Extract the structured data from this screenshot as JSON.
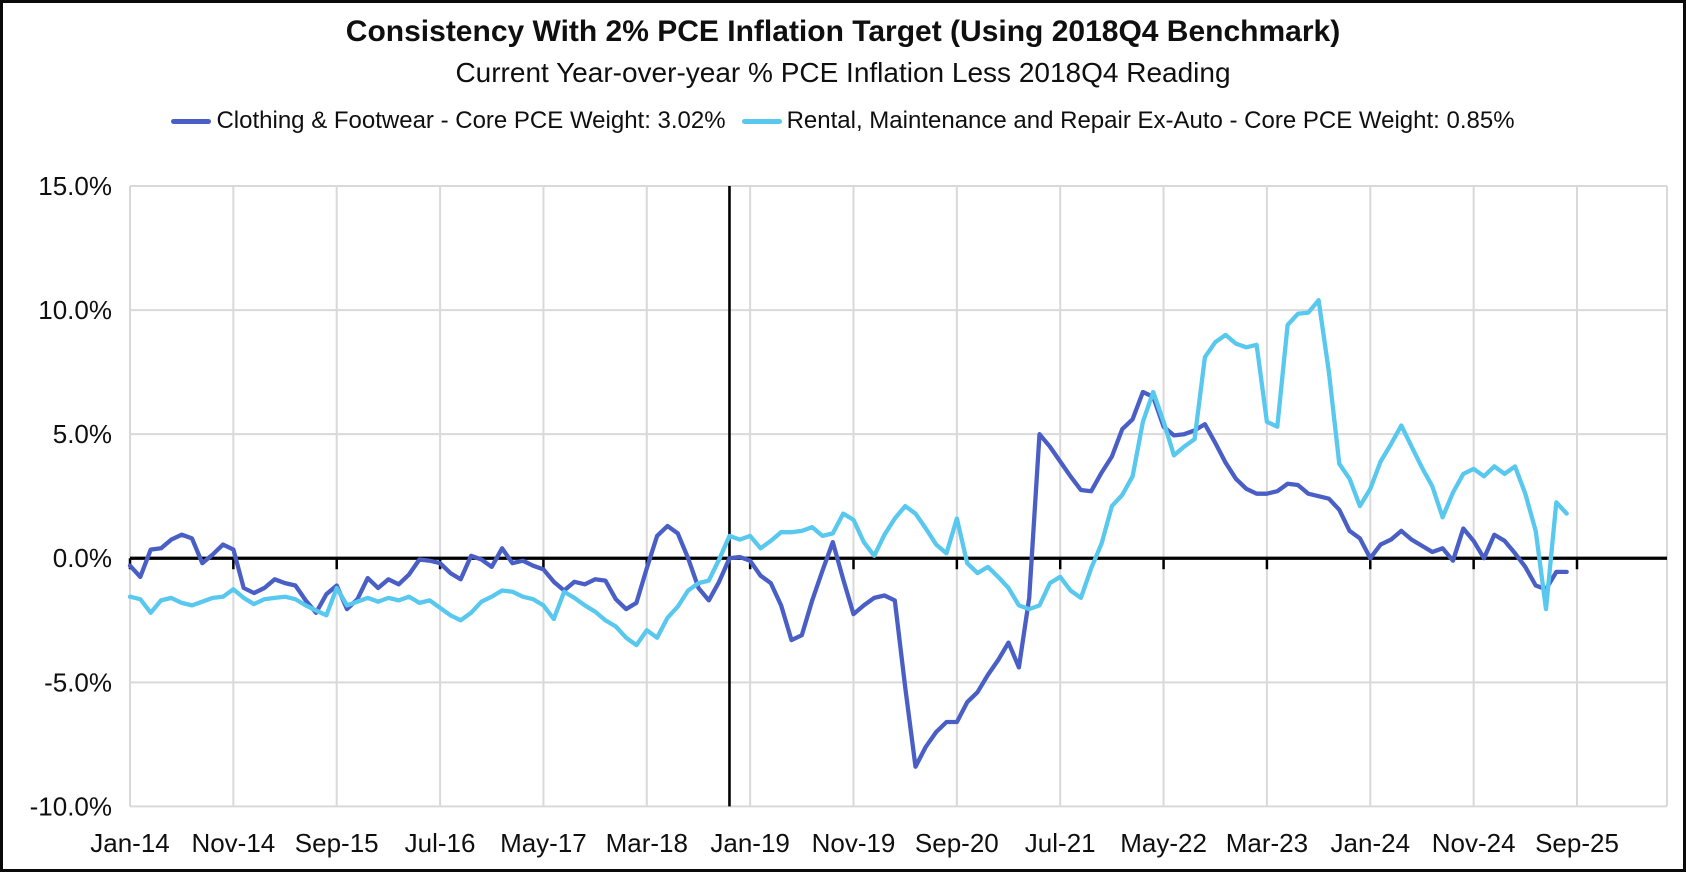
{
  "title": "Consistency With 2% PCE Inflation Target (Using 2018Q4 Benchmark)",
  "subtitle": "Current Year-over-year % PCE Inflation Less 2018Q4 Reading",
  "legend": [
    {
      "label": "Clothing & Footwear - Core PCE Weight: 3.02%",
      "color": "#4A5FC6"
    },
    {
      "label": "Rental, Maintenance and Repair Ex-Auto - Core PCE Weight: 0.85%",
      "color": "#58C8EE"
    }
  ],
  "colors": {
    "gridline": "#D9D9D9",
    "axis_line": "#000000",
    "benchmark_line": "#000000",
    "text": "#0f0f0f",
    "background": "#ffffff"
  },
  "chart_data": {
    "type": "line",
    "frequency": "monthly",
    "x_start": "Jan-14",
    "x_end": "Aug-25",
    "n_points": 140,
    "x_tick_labels": [
      "Jan-14",
      "Nov-14",
      "Sep-15",
      "Jul-16",
      "May-17",
      "Mar-18",
      "Jan-19",
      "Nov-19",
      "Sep-20",
      "Jul-21",
      "May-22",
      "Mar-23",
      "Jan-24",
      "Nov-24",
      "Sep-25"
    ],
    "x_tick_interval_months": 10,
    "y_ticks": [
      15,
      10,
      5,
      0,
      -5,
      -10
    ],
    "y_tick_labels": [
      "15.0%",
      "10.0%",
      "5.0%",
      "0.0%",
      "-5.0%",
      "-10.0%"
    ],
    "ylim": [
      -10,
      15
    ],
    "grid": true,
    "legend_position": "top",
    "vline_month_index": 58,
    "series": [
      {
        "id": "clothing",
        "name": "Clothing & Footwear - Core PCE Weight: 3.02%",
        "color": "#4A5FC6",
        "values": [
          -0.3,
          -0.75,
          0.35,
          0.4,
          0.75,
          0.95,
          0.8,
          -0.2,
          0.15,
          0.55,
          0.35,
          -1.2,
          -1.4,
          -1.2,
          -0.85,
          -1.0,
          -1.1,
          -1.7,
          -2.2,
          -1.45,
          -1.1,
          -2.05,
          -1.65,
          -0.8,
          -1.2,
          -0.85,
          -1.05,
          -0.65,
          -0.05,
          -0.1,
          -0.2,
          -0.6,
          -0.85,
          0.1,
          -0.05,
          -0.35,
          0.4,
          -0.2,
          -0.1,
          -0.3,
          -0.45,
          -0.95,
          -1.3,
          -0.95,
          -1.05,
          -0.85,
          -0.9,
          -1.65,
          -2.05,
          -1.8,
          -0.4,
          0.9,
          1.3,
          1.0,
          0.0,
          -1.2,
          -1.7,
          -0.95,
          0.0,
          0.05,
          -0.1,
          -0.7,
          -1.0,
          -1.9,
          -3.3,
          -3.1,
          -1.7,
          -0.5,
          0.65,
          -0.85,
          -2.25,
          -1.9,
          -1.6,
          -1.5,
          -1.7,
          -5.2,
          -8.4,
          -7.6,
          -7.0,
          -6.6,
          -6.6,
          -5.8,
          -5.4,
          -4.7,
          -4.1,
          -3.4,
          -4.4,
          -1.6,
          5.0,
          4.5,
          3.9,
          3.3,
          2.75,
          2.7,
          3.45,
          4.1,
          5.2,
          5.6,
          6.7,
          6.5,
          5.3,
          4.95,
          5.0,
          5.15,
          5.4,
          4.65,
          3.85,
          3.2,
          2.8,
          2.6,
          2.6,
          2.7,
          3.0,
          2.95,
          2.6,
          2.5,
          2.4,
          1.95,
          1.1,
          0.8,
          0.0,
          0.55,
          0.75,
          1.1,
          0.75,
          0.5,
          0.25,
          0.4,
          -0.1,
          1.2,
          0.7,
          0.0,
          0.95,
          0.7,
          0.2,
          -0.35,
          -1.1,
          -1.25,
          -0.55,
          -0.55
        ]
      },
      {
        "id": "rental",
        "name": "Rental, Maintenance and Repair Ex-Auto - Core PCE Weight: 0.85%",
        "color": "#58C8EE",
        "values": [
          -1.55,
          -1.65,
          -2.2,
          -1.7,
          -1.6,
          -1.8,
          -1.9,
          -1.75,
          -1.6,
          -1.55,
          -1.25,
          -1.6,
          -1.85,
          -1.65,
          -1.6,
          -1.55,
          -1.65,
          -1.9,
          -2.1,
          -2.3,
          -1.2,
          -1.9,
          -1.75,
          -1.6,
          -1.75,
          -1.6,
          -1.7,
          -1.55,
          -1.8,
          -1.7,
          -2.0,
          -2.3,
          -2.5,
          -2.2,
          -1.75,
          -1.55,
          -1.3,
          -1.35,
          -1.55,
          -1.65,
          -1.9,
          -2.45,
          -1.35,
          -1.6,
          -1.9,
          -2.15,
          -2.5,
          -2.75,
          -3.2,
          -3.5,
          -2.9,
          -3.2,
          -2.4,
          -1.95,
          -1.3,
          -1.0,
          -0.9,
          -0.05,
          0.9,
          0.75,
          0.9,
          0.4,
          0.7,
          1.05,
          1.05,
          1.1,
          1.25,
          0.9,
          1.0,
          1.8,
          1.55,
          0.65,
          0.1,
          0.95,
          1.6,
          2.1,
          1.8,
          1.2,
          0.55,
          0.2,
          1.6,
          -0.2,
          -0.6,
          -0.35,
          -0.75,
          -1.2,
          -1.9,
          -2.05,
          -1.9,
          -1.0,
          -0.75,
          -1.3,
          -1.6,
          -0.4,
          0.6,
          2.1,
          2.55,
          3.3,
          5.5,
          6.7,
          5.5,
          4.15,
          4.5,
          4.8,
          8.1,
          8.7,
          9.0,
          8.65,
          8.5,
          8.6,
          5.5,
          5.3,
          9.4,
          9.85,
          9.9,
          10.4,
          7.5,
          3.8,
          3.2,
          2.1,
          2.8,
          3.9,
          4.6,
          5.35,
          4.5,
          3.65,
          2.9,
          1.65,
          2.65,
          3.4,
          3.6,
          3.3,
          3.7,
          3.4,
          3.7,
          2.6,
          1.1,
          -2.05,
          2.25,
          1.8
        ]
      }
    ]
  }
}
